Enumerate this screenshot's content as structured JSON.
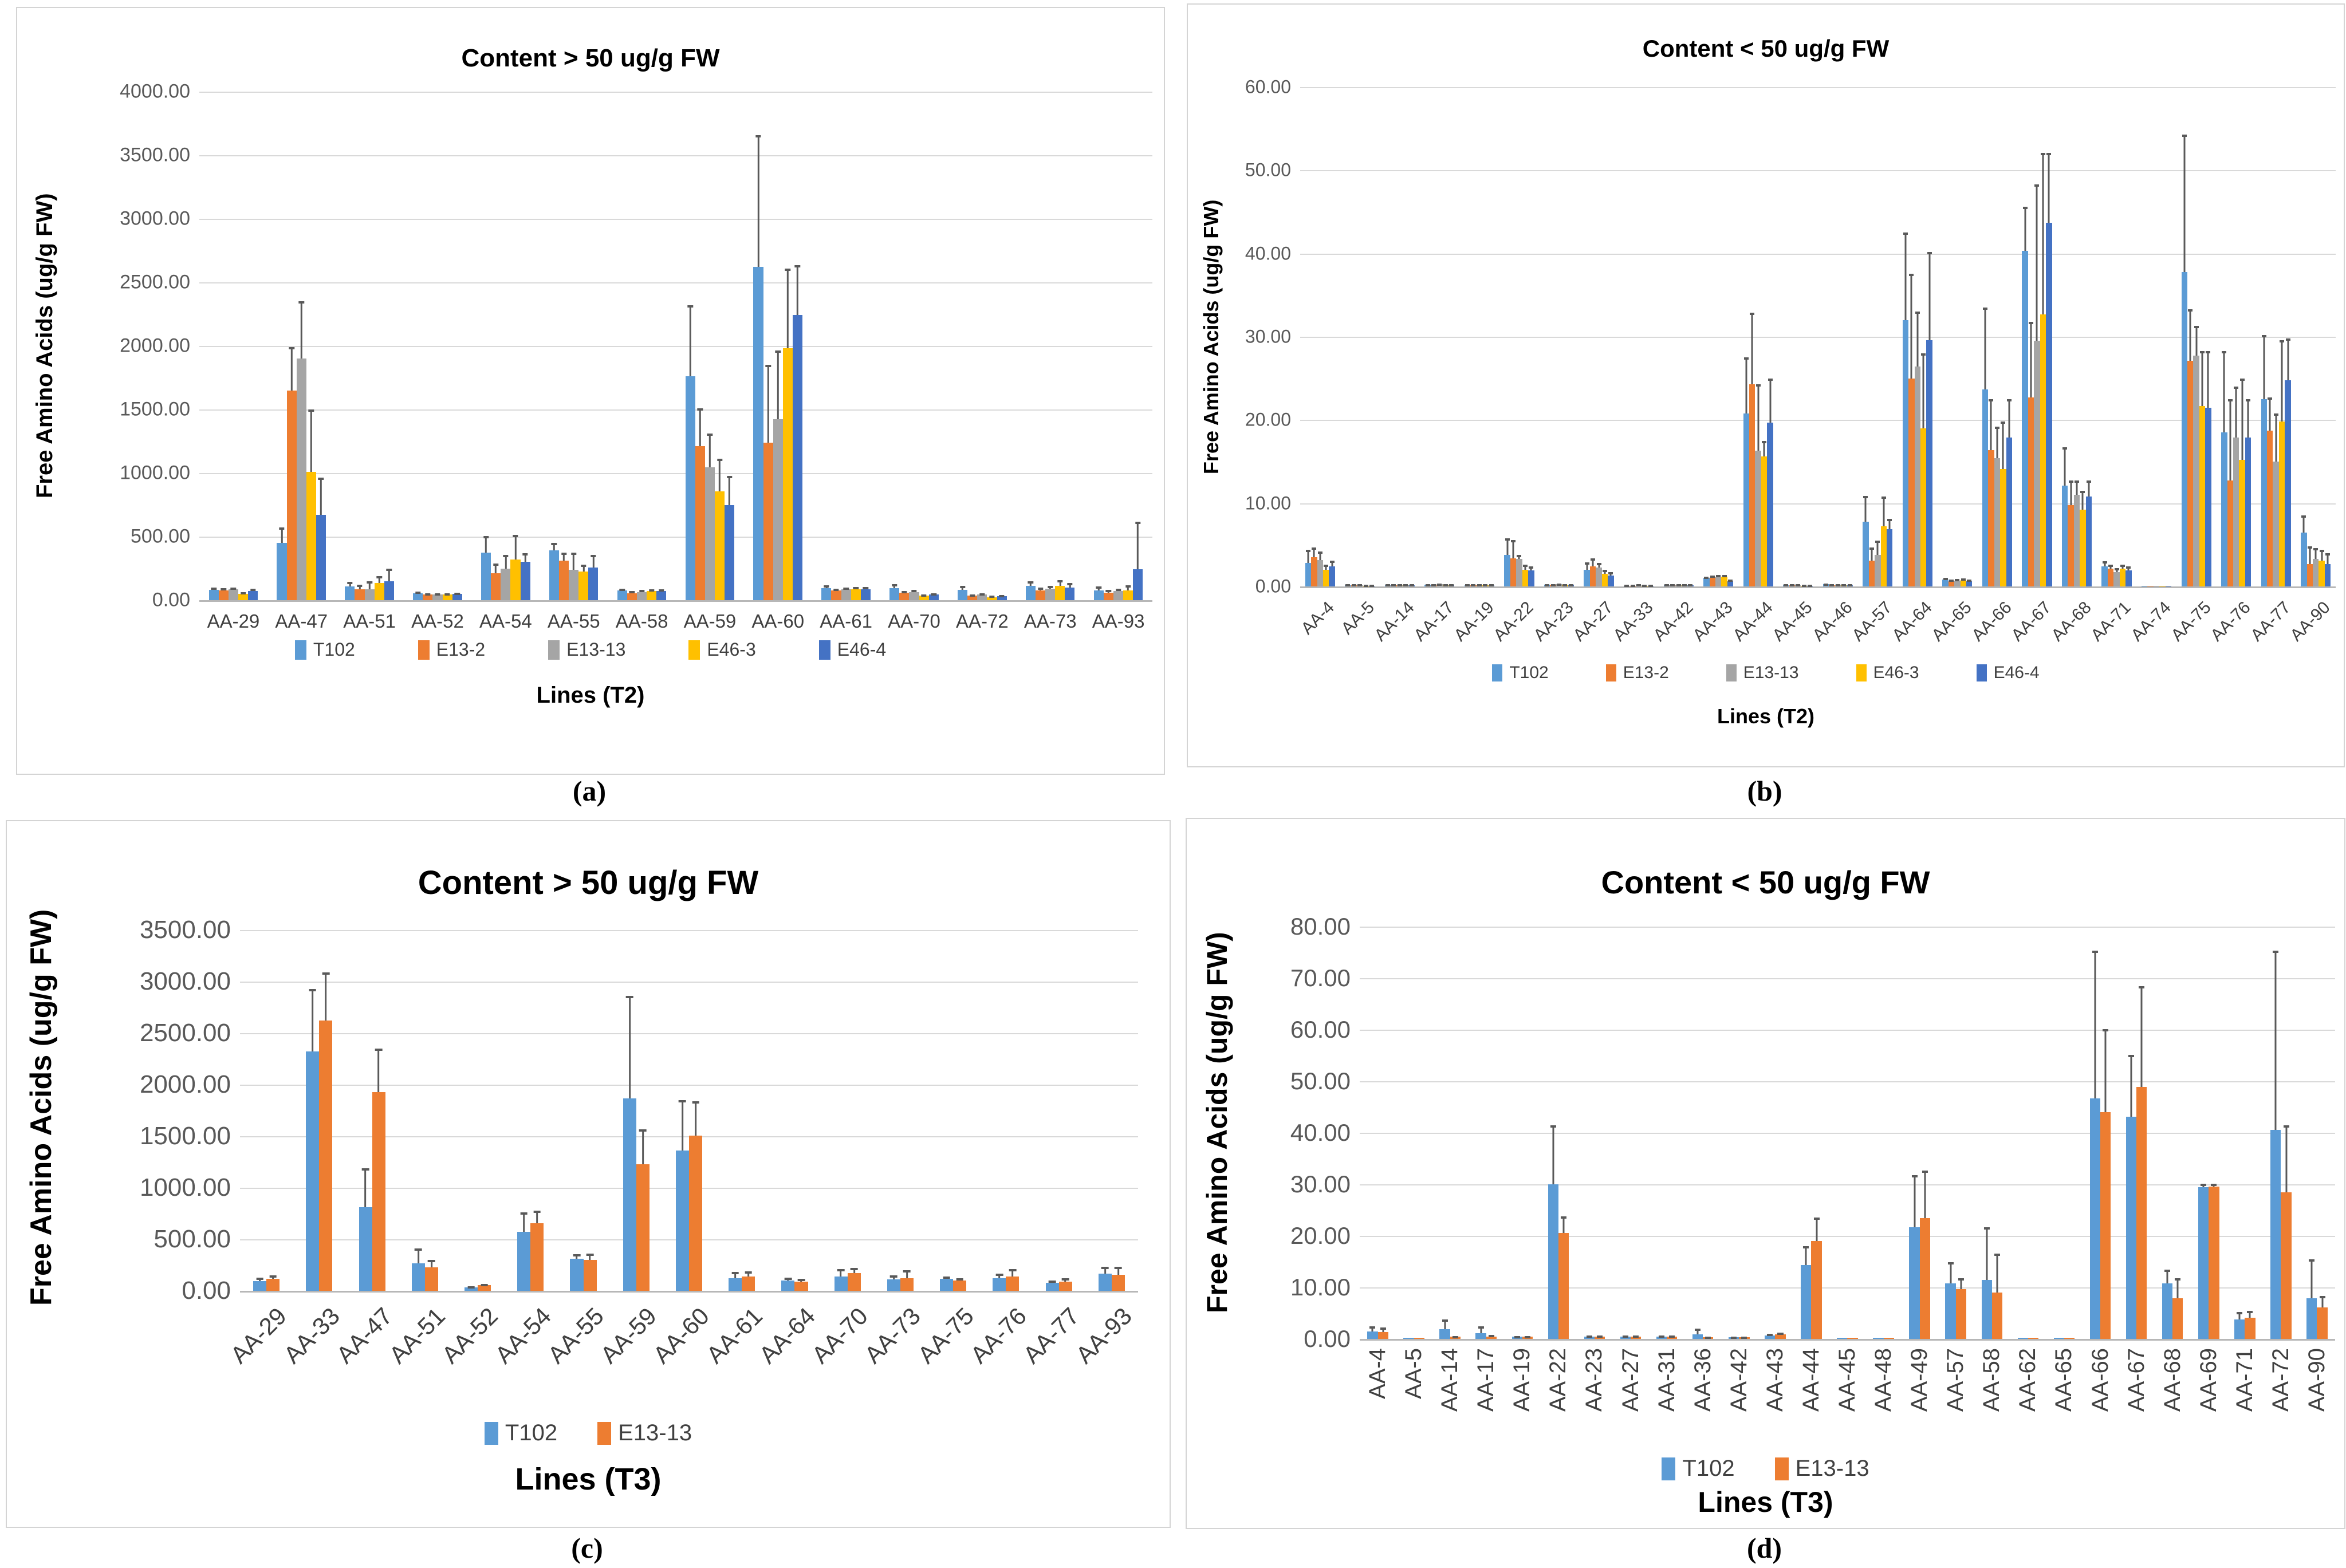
{
  "figure": {
    "captions": [
      "(a)",
      "(b)",
      "(c)",
      "(d)"
    ],
    "colors": {
      "T102": "#5B9BD5",
      "E13-2": "#ED7D31",
      "E13-13_gray": "#A5A5A5",
      "E46-3": "#FFC000",
      "E46-4": "#4472C4",
      "error_bar": "#595959",
      "gridline": "#D9D9D9"
    }
  },
  "chart_data": [
    {
      "id": "a",
      "type": "bar",
      "title": "Content > 50 ug/g FW",
      "ylabel": "Free Amino Acids (ug/g FW)",
      "xlabel": "Lines (T2)",
      "ylim": [
        0,
        4000
      ],
      "ytick_step": 500,
      "grid": true,
      "legend_position": "bottom",
      "xlabel_rotation": 0,
      "categories": [
        "AA-29",
        "AA-47",
        "AA-51",
        "AA-52",
        "AA-54",
        "AA-55",
        "AA-58",
        "AA-59",
        "AA-60",
        "AA-61",
        "AA-70",
        "AA-72",
        "AA-73",
        "AA-93"
      ],
      "series": [
        {
          "name": "T102",
          "color": "#5B9BD5",
          "values": [
            80,
            450,
            110,
            55,
            375,
            390,
            75,
            1760,
            2620,
            95,
            95,
            80,
            112,
            78
          ],
          "errors_top": [
            100,
            570,
            145,
            68,
            505,
            450,
            92,
            2320,
            3660,
            115,
            126,
            112,
            150,
            110
          ]
        },
        {
          "name": "E13-2",
          "color": "#ED7D31",
          "values": [
            76,
            1650,
            86,
            44,
            210,
            312,
            55,
            1210,
            1240,
            76,
            60,
            34,
            78,
            58
          ],
          "errors_top": [
            94,
            1990,
            122,
            54,
            288,
            376,
            70,
            1510,
            1850,
            92,
            74,
            44,
            100,
            80
          ]
        },
        {
          "name": "E13-13",
          "color": "#A5A5A5",
          "values": [
            84,
            1900,
            86,
            44,
            248,
            240,
            64,
            1045,
            1425,
            84,
            64,
            45,
            90,
            74
          ],
          "errors_top": [
            100,
            2350,
            150,
            54,
            354,
            376,
            80,
            1310,
            1965,
            100,
            80,
            56,
            112,
            90
          ]
        },
        {
          "name": "E46-3",
          "color": "#FFC000",
          "values": [
            48,
            1010,
            134,
            44,
            320,
            224,
            70,
            855,
            1980,
            86,
            34,
            24,
            112,
            78
          ],
          "errors_top": [
            64,
            1500,
            190,
            54,
            515,
            280,
            86,
            1112,
            2610,
            102,
            44,
            34,
            160,
            116
          ]
        },
        {
          "name": "E46-4",
          "color": "#4472C4",
          "values": [
            74,
            672,
            150,
            50,
            300,
            256,
            70,
            748,
            2245,
            86,
            46,
            30,
            100,
            245
          ],
          "errors_top": [
            92,
            965,
            248,
            60,
            370,
            354,
            86,
            978,
            2635,
            102,
            56,
            40,
            136,
            618
          ]
        }
      ]
    },
    {
      "id": "b",
      "type": "bar",
      "title": "Content < 50 ug/g FW",
      "ylabel": "Free Amino Acids (ug/g FW)",
      "xlabel": "Lines (T2)",
      "ylim": [
        0,
        60
      ],
      "ytick_step": 10,
      "grid": true,
      "legend_position": "bottom",
      "xlabel_rotation": 45,
      "categories": [
        "AA-4",
        "AA-5",
        "AA-14",
        "AA-17",
        "AA-19",
        "AA-22",
        "AA-23",
        "AA-27",
        "AA-33",
        "AA-42",
        "AA-43",
        "AA-44",
        "AA-45",
        "AA-46",
        "AA-57",
        "AA-64",
        "AA-65",
        "AA-66",
        "AA-67",
        "AA-68",
        "AA-71",
        "AA-74",
        "AA-75",
        "AA-76",
        "AA-77",
        "AA-90"
      ],
      "series": [
        {
          "name": "T102",
          "color": "#5B9BD5",
          "values": [
            2.8,
            0.15,
            0.15,
            0.2,
            0.15,
            3.8,
            0.2,
            2.0,
            0.1,
            0.15,
            1.0,
            20.8,
            0.15,
            0.25,
            7.8,
            32.0,
            0.8,
            23.7,
            40.3,
            12.1,
            2.4,
            0.1,
            37.8,
            18.5,
            22.5,
            6.5
          ],
          "errors_top": [
            4.4,
            0.25,
            0.25,
            0.3,
            0.25,
            5.8,
            0.3,
            2.9,
            0.2,
            0.25,
            1.2,
            27.5,
            0.25,
            0.35,
            10.9,
            42.5,
            1.0,
            33.5,
            45.6,
            16.7,
            3.0,
            0.15,
            54.3,
            28.3,
            30.2,
            8.5
          ]
        },
        {
          "name": "E13-2",
          "color": "#ED7D31",
          "values": [
            3.5,
            0.15,
            0.15,
            0.2,
            0.15,
            3.4,
            0.2,
            2.4,
            0.1,
            0.15,
            1.1,
            24.3,
            0.15,
            0.15,
            3.1,
            25.0,
            0.6,
            16.4,
            22.7,
            9.8,
            2.1,
            0.1,
            27.1,
            12.7,
            18.7,
            2.7
          ],
          "errors_top": [
            4.7,
            0.25,
            0.25,
            0.3,
            0.25,
            5.6,
            0.3,
            3.4,
            0.2,
            0.25,
            1.3,
            32.9,
            0.25,
            0.25,
            4.7,
            37.6,
            0.8,
            22.5,
            31.8,
            12.7,
            2.6,
            0.15,
            33.3,
            22.5,
            22.7,
            4.8
          ]
        },
        {
          "name": "E13-13",
          "color": "#A5A5A5",
          "values": [
            3.2,
            0.15,
            0.2,
            0.25,
            0.2,
            3.3,
            0.25,
            2.3,
            0.15,
            0.2,
            1.2,
            16.3,
            0.15,
            0.2,
            3.8,
            26.4,
            0.7,
            15.4,
            29.5,
            11.0,
            1.7,
            0.1,
            27.7,
            17.9,
            15.0,
            3.3
          ],
          "errors_top": [
            4.2,
            0.25,
            0.3,
            0.35,
            0.3,
            3.8,
            0.35,
            2.8,
            0.25,
            0.3,
            1.4,
            24.3,
            0.25,
            0.3,
            5.5,
            33.0,
            0.9,
            19.2,
            48.3,
            12.7,
            2.2,
            0.15,
            31.3,
            24.0,
            20.8,
            4.6
          ]
        },
        {
          "name": "E46-3",
          "color": "#FFC000",
          "values": [
            2.0,
            0.1,
            0.15,
            0.2,
            0.15,
            2.0,
            0.2,
            1.5,
            0.1,
            0.15,
            1.15,
            15.6,
            0.1,
            0.15,
            7.2,
            19.0,
            0.75,
            14.1,
            32.7,
            9.2,
            2.1,
            0.1,
            21.7,
            15.2,
            19.8,
            3.1
          ],
          "errors_top": [
            2.6,
            0.2,
            0.25,
            0.3,
            0.25,
            2.6,
            0.3,
            2.0,
            0.2,
            0.25,
            1.35,
            17.5,
            0.2,
            0.25,
            10.8,
            28.0,
            0.95,
            19.8,
            52.1,
            11.5,
            2.6,
            0.15,
            28.3,
            25.0,
            29.6,
            4.4
          ]
        },
        {
          "name": "E46-4",
          "color": "#4472C4",
          "values": [
            2.4,
            0.1,
            0.15,
            0.2,
            0.15,
            1.9,
            0.2,
            1.3,
            0.1,
            0.15,
            0.6,
            19.7,
            0.1,
            0.15,
            6.9,
            29.6,
            0.6,
            17.9,
            43.7,
            10.8,
            1.9,
            0.1,
            21.5,
            17.9,
            24.8,
            2.7
          ],
          "errors_top": [
            3.1,
            0.2,
            0.25,
            0.3,
            0.25,
            2.4,
            0.3,
            1.7,
            0.2,
            0.25,
            0.8,
            25.0,
            0.2,
            0.25,
            8.1,
            40.2,
            0.8,
            22.5,
            52.1,
            12.7,
            2.4,
            0.15,
            28.3,
            22.5,
            29.8,
            4.0
          ]
        }
      ]
    },
    {
      "id": "c",
      "type": "bar",
      "title": "Content > 50 ug/g FW",
      "ylabel": "Free Amino Acids (ug/g FW)",
      "xlabel": "Lines (T3)",
      "ylim": [
        0,
        3500
      ],
      "ytick_step": 500,
      "grid": true,
      "legend_position": "bottom",
      "xlabel_rotation": 45,
      "categories": [
        "AA-29",
        "AA-33",
        "AA-47",
        "AA-51",
        "AA-52",
        "AA-54",
        "AA-55",
        "AA-59",
        "AA-60",
        "AA-61",
        "AA-64",
        "AA-70",
        "AA-73",
        "AA-75",
        "AA-76",
        "AA-77",
        "AA-93"
      ],
      "series": [
        {
          "name": "T102",
          "color": "#5B9BD5",
          "values": [
            95,
            2320,
            810,
            265,
            35,
            570,
            310,
            1865,
            1360,
            125,
            100,
            140,
            110,
            115,
            125,
            80,
            165
          ],
          "errors_top": [
            130,
            2930,
            1190,
            410,
            45,
            760,
            355,
            2860,
            1850,
            185,
            130,
            210,
            150,
            140,
            165,
            100,
            235
          ]
        },
        {
          "name": "E13-13",
          "color": "#ED7D31",
          "values": [
            115,
            2620,
            1930,
            230,
            55,
            655,
            300,
            1230,
            1505,
            140,
            90,
            175,
            125,
            100,
            140,
            90,
            155
          ],
          "errors_top": [
            150,
            3090,
            2350,
            300,
            65,
            780,
            360,
            1565,
            1840,
            190,
            115,
            220,
            200,
            120,
            210,
            120,
            235
          ]
        }
      ]
    },
    {
      "id": "d",
      "type": "bar",
      "title": "Content < 50 ug/g FW",
      "ylabel": "Free Amino Acids (ug/g FW)",
      "xlabel": "Lines (T3)",
      "ylim": [
        0,
        80
      ],
      "ytick_step": 10,
      "grid": true,
      "legend_position": "bottom",
      "xlabel_rotation": 90,
      "categories": [
        "AA-4",
        "AA-5",
        "AA-14",
        "AA-17",
        "AA-19",
        "AA-22",
        "AA-23",
        "AA-27",
        "AA-31",
        "AA-36",
        "AA-42",
        "AA-43",
        "AA-44",
        "AA-45",
        "AA-48",
        "AA-49",
        "AA-57",
        "AA-58",
        "AA-62",
        "AA-65",
        "AA-66",
        "AA-67",
        "AA-68",
        "AA-69",
        "AA-71",
        "AA-72",
        "AA-90"
      ],
      "series": [
        {
          "name": "T102",
          "color": "#5B9BD5",
          "values": [
            1.4,
            0.2,
            1.9,
            1.1,
            0.4,
            30.0,
            0.5,
            0.5,
            0.5,
            0.9,
            0.3,
            0.7,
            14.3,
            0.2,
            0.2,
            21.7,
            10.8,
            11.4,
            0.2,
            0.2,
            46.7,
            43.1,
            10.8,
            29.4,
            3.8,
            40.6,
            7.9
          ],
          "errors_top": [
            2.5,
            0.3,
            3.8,
            2.5,
            0.6,
            41.5,
            0.7,
            0.7,
            0.7,
            2.0,
            0.5,
            1.0,
            18.0,
            0.3,
            0.3,
            31.8,
            14.9,
            21.7,
            0.3,
            0.3,
            75.3,
            55.1,
            13.5,
            30.1,
            5.2,
            75.3,
            15.5
          ]
        },
        {
          "name": "E13-13",
          "color": "#ED7D31",
          "values": [
            1.3,
            0.2,
            0.4,
            0.5,
            0.4,
            20.6,
            0.5,
            0.5,
            0.5,
            0.3,
            0.3,
            0.9,
            19.0,
            0.2,
            0.2,
            23.5,
            9.7,
            9.0,
            0.2,
            0.2,
            44.0,
            48.9,
            7.9,
            29.6,
            4.1,
            28.5,
            6.1
          ],
          "errors_top": [
            2.2,
            0.3,
            0.6,
            0.8,
            0.6,
            23.8,
            0.7,
            0.7,
            0.7,
            0.5,
            0.5,
            1.2,
            23.6,
            0.3,
            0.3,
            32.7,
            11.8,
            16.6,
            0.3,
            0.3,
            60.1,
            68.4,
            11.8,
            30.1,
            5.4,
            41.5,
            8.3
          ]
        }
      ]
    }
  ]
}
